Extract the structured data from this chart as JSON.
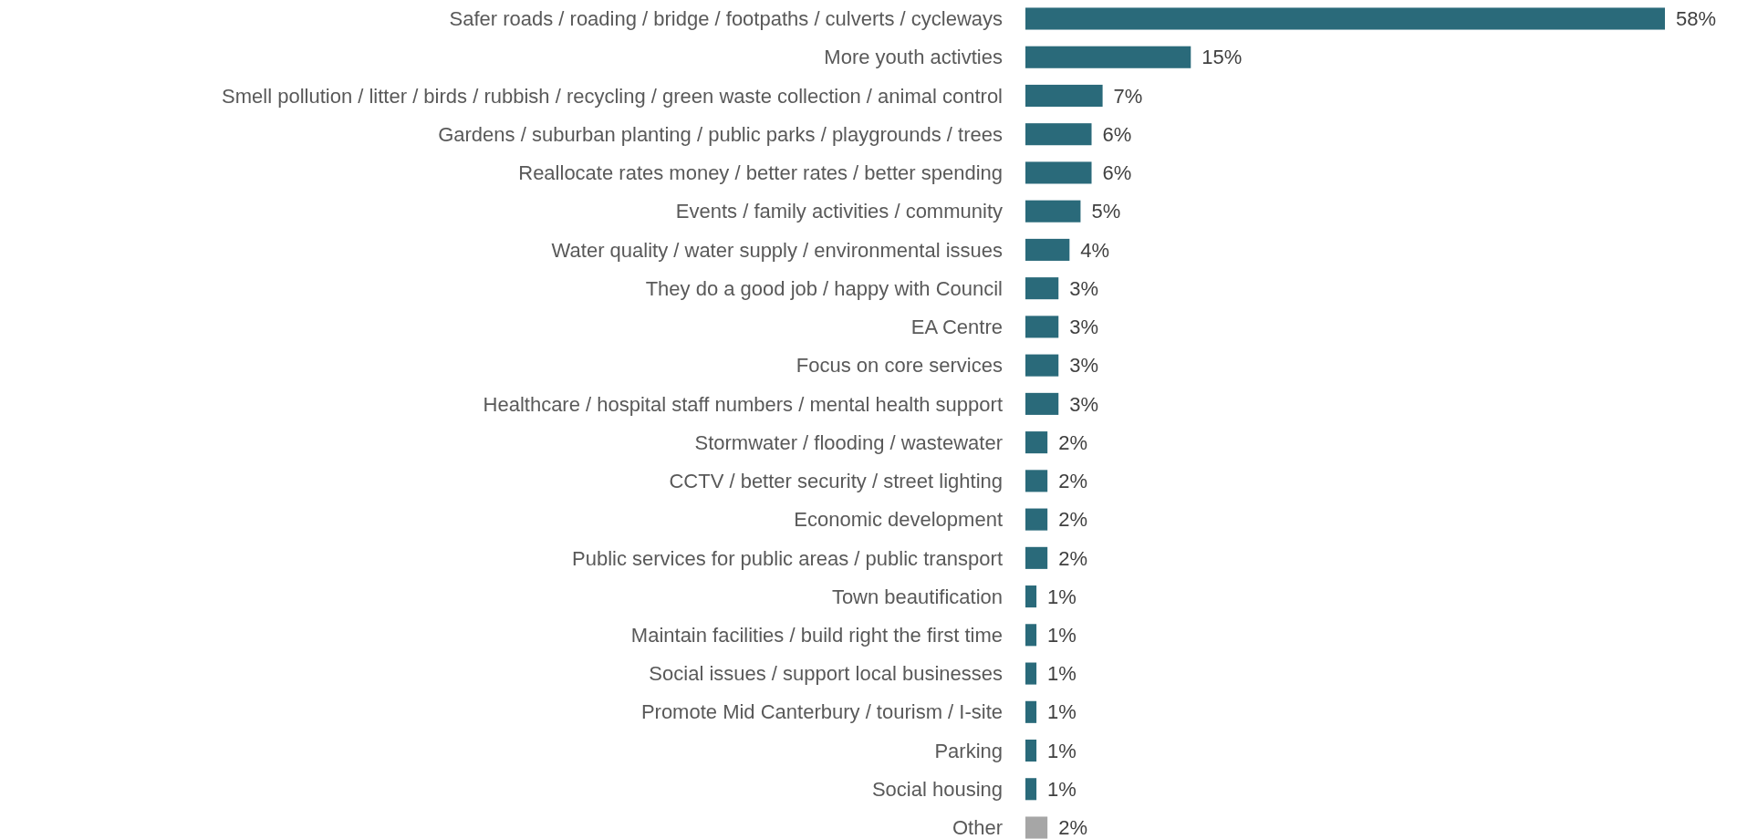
{
  "chart_data": {
    "type": "bar",
    "orientation": "horizontal",
    "categories": [
      "Safer roads / roading / bridge / footpaths / culverts / cycleways",
      "More youth activties",
      "Smell pollution / litter / birds / rubbish / recycling / green waste collection / animal control",
      "Gardens / suburban planting / public parks / playgrounds / trees",
      "Reallocate rates money / better rates / better spending",
      "Events / family activities / community",
      "Water quality / water supply / environmental issues",
      "They do a good job / happy with Council",
      "EA Centre",
      "Focus on core services",
      "Healthcare / hospital staff numbers / mental health support",
      "Stormwater / flooding / wastewater",
      "CCTV / better security / street lighting",
      "Economic development",
      "Public services for public areas / public transport",
      "Town beautification",
      "Maintain facilities / build right the first time",
      "Social issues / support local businesses",
      "Promote Mid Canterbury / tourism / I-site",
      "Parking",
      "Social housing",
      "Other"
    ],
    "values": [
      58,
      15,
      7,
      6,
      6,
      5,
      4,
      3,
      3,
      3,
      3,
      2,
      2,
      2,
      2,
      1,
      1,
      1,
      1,
      1,
      1,
      2
    ],
    "value_labels": [
      "58%",
      "15%",
      "7%",
      "6%",
      "6%",
      "5%",
      "4%",
      "3%",
      "3%",
      "3%",
      "3%",
      "2%",
      "2%",
      "2%",
      "2%",
      "1%",
      "1%",
      "1%",
      "1%",
      "1%",
      "1%",
      "2%"
    ],
    "colors": [
      "#2a6a7a",
      "#2a6a7a",
      "#2a6a7a",
      "#2a6a7a",
      "#2a6a7a",
      "#2a6a7a",
      "#2a6a7a",
      "#2a6a7a",
      "#2a6a7a",
      "#2a6a7a",
      "#2a6a7a",
      "#2a6a7a",
      "#2a6a7a",
      "#2a6a7a",
      "#2a6a7a",
      "#2a6a7a",
      "#2a6a7a",
      "#2a6a7a",
      "#2a6a7a",
      "#2a6a7a",
      "#2a6a7a",
      "#a6a6a6"
    ],
    "grid": false
  }
}
